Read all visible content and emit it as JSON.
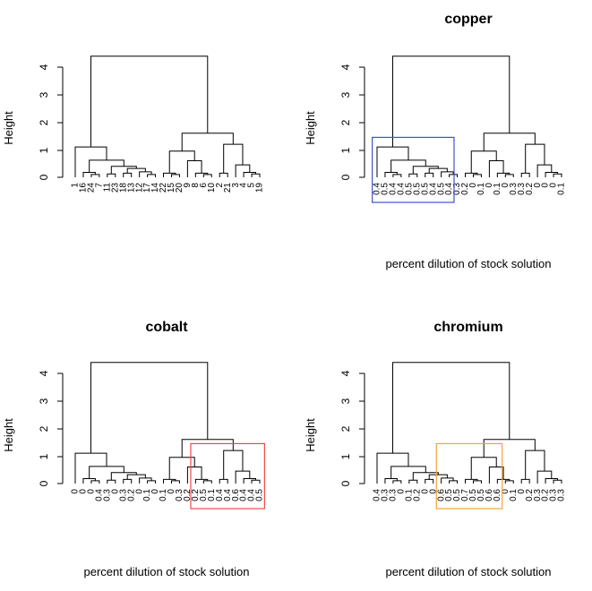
{
  "chart_data": [
    {
      "type": "dendrogram",
      "title": "",
      "xlabel": "",
      "ylabel": "Height",
      "ylim": [
        0,
        4.4
      ],
      "yticks": [
        0,
        1,
        2,
        3,
        4
      ],
      "labels": [
        "1",
        "16",
        "24",
        "7",
        "11",
        "23",
        "18",
        "13",
        "12",
        "17",
        "14",
        "22",
        "15",
        "20",
        "9",
        "8",
        "6",
        "10",
        "2",
        "21",
        "3",
        "4",
        "5",
        "19"
      ],
      "highlight": null
    },
    {
      "type": "dendrogram",
      "title": "copper",
      "xlabel": "percent dilution of stock solution",
      "ylabel": "Height",
      "ylim": [
        0,
        4.4
      ],
      "yticks": [
        0,
        1,
        2,
        3,
        4
      ],
      "labels": [
        "0.4",
        "0.5",
        "0.4",
        "0.4",
        "0.5",
        "0.5",
        "0.5",
        "0.4",
        "0.5",
        "0.4",
        "0.3",
        "0.2",
        "0",
        "0.1",
        "0",
        "0.1",
        "0",
        "0.3",
        "0.3",
        "0.2",
        "0",
        "0",
        "0",
        "0.1"
      ],
      "highlight": {
        "color": "#3f51d8",
        "from": 0,
        "to": 9
      }
    },
    {
      "type": "dendrogram",
      "title": "cobalt",
      "xlabel": "percent dilution of stock solution",
      "ylabel": "Height",
      "ylim": [
        0,
        4.4
      ],
      "yticks": [
        0,
        1,
        2,
        3,
        4
      ],
      "labels": [
        "0",
        "0",
        "0",
        "0.4",
        "0.3",
        "0",
        "0.3",
        "0.2",
        "0",
        "0.1",
        "0",
        "0.1",
        "0",
        "0.3",
        "0.2",
        "0.2",
        "0.5",
        "0.1",
        "0.4",
        "0.4",
        "0.6",
        "0.4",
        "0.4",
        "0.5"
      ],
      "highlight": {
        "color": "#f04848",
        "from": 15,
        "to": 23
      }
    },
    {
      "type": "dendrogram",
      "title": "chromium",
      "xlabel": "percent dilution of stock solution",
      "ylabel": "Height",
      "ylim": [
        0,
        4.4
      ],
      "yticks": [
        0,
        1,
        2,
        3,
        4
      ],
      "labels": [
        "0.4",
        "0.3",
        "0.3",
        "0",
        "0.1",
        "0.2",
        "0",
        "0",
        "0.6",
        "0.5",
        "0.5",
        "0.7",
        "0.5",
        "0.5",
        "0.6",
        "0.6",
        "0",
        "0.1",
        "0",
        "0.2",
        "0.3",
        "0.2",
        "0.3",
        "0.3"
      ],
      "highlight": {
        "color": "#f2a33a",
        "from": 8,
        "to": 15
      }
    }
  ],
  "merges": {
    "leaves": [
      [
        0,
        0.45
      ],
      [
        1,
        0.25
      ],
      [
        2,
        0.2
      ],
      [
        3,
        0.18
      ],
      [
        4,
        0.12
      ],
      [
        5,
        0.2
      ],
      [
        6,
        0.28
      ],
      [
        7,
        0.15
      ],
      [
        8,
        0.1
      ],
      [
        9,
        0.15
      ],
      [
        10,
        0.12
      ],
      [
        11,
        0.12
      ],
      [
        12,
        0.12
      ],
      [
        13,
        0.18
      ],
      [
        14,
        0.18
      ],
      [
        15,
        0.15
      ],
      [
        16,
        0.12
      ],
      [
        17,
        0.12
      ],
      [
        18,
        0.12
      ],
      [
        19,
        0.2
      ],
      [
        20,
        0.3
      ],
      [
        21,
        0.15
      ],
      [
        22,
        0.12
      ],
      [
        23,
        0.1
      ]
    ]
  }
}
